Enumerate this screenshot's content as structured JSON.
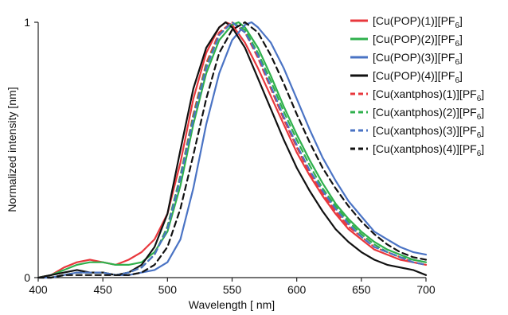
{
  "chart_data": {
    "type": "line",
    "xlabel": "Wavelength [ nm]",
    "ylabel": "Normalized intensity [nm]",
    "xlim": [
      400,
      700
    ],
    "ylim": [
      0,
      1
    ],
    "xticks": [
      400,
      450,
      500,
      550,
      600,
      650,
      700
    ],
    "yticks": [
      0,
      1
    ],
    "grid": false,
    "legend": "top-right",
    "series": [
      {
        "name": "[Cu(POP)(1)][PF6]",
        "label_main": "[Cu(POP)(1)][PF",
        "label_sub": "6",
        "label_end": "]",
        "color": "#e8383d",
        "style": "solid",
        "x": [
          400,
          410,
          420,
          430,
          440,
          450,
          460,
          470,
          480,
          490,
          500,
          510,
          520,
          530,
          540,
          545,
          550,
          560,
          570,
          580,
          590,
          600,
          610,
          620,
          630,
          640,
          650,
          660,
          670,
          680,
          690,
          700
        ],
        "y": [
          0,
          0.01,
          0.04,
          0.06,
          0.07,
          0.06,
          0.05,
          0.07,
          0.1,
          0.15,
          0.25,
          0.45,
          0.7,
          0.88,
          0.98,
          1.0,
          0.99,
          0.92,
          0.82,
          0.71,
          0.6,
          0.49,
          0.4,
          0.32,
          0.25,
          0.19,
          0.15,
          0.11,
          0.09,
          0.07,
          0.06,
          0.05
        ]
      },
      {
        "name": "[Cu(POP)(2)][PF6]",
        "label_main": "[Cu(POP)(2)][PF",
        "label_sub": "6",
        "label_end": "]",
        "color": "#2fb04c",
        "style": "solid",
        "x": [
          400,
          410,
          420,
          430,
          440,
          450,
          460,
          470,
          480,
          490,
          500,
          510,
          520,
          530,
          540,
          550,
          555,
          560,
          570,
          580,
          590,
          600,
          610,
          620,
          630,
          640,
          650,
          660,
          670,
          680,
          690,
          700
        ],
        "y": [
          0,
          0.01,
          0.03,
          0.05,
          0.06,
          0.06,
          0.05,
          0.05,
          0.06,
          0.1,
          0.18,
          0.36,
          0.6,
          0.8,
          0.93,
          0.99,
          1.0,
          0.98,
          0.9,
          0.79,
          0.67,
          0.56,
          0.46,
          0.37,
          0.29,
          0.23,
          0.18,
          0.14,
          0.11,
          0.09,
          0.07,
          0.06
        ]
      },
      {
        "name": "[Cu(POP)(3)][PF6]",
        "label_main": "[Cu(POP)(3)][PF",
        "label_sub": "6",
        "label_end": "]",
        "color": "#4a73c4",
        "style": "solid",
        "x": [
          400,
          410,
          420,
          430,
          440,
          450,
          460,
          470,
          480,
          490,
          500,
          510,
          520,
          530,
          540,
          550,
          560,
          565,
          570,
          580,
          590,
          600,
          610,
          620,
          630,
          640,
          650,
          660,
          670,
          680,
          690,
          700
        ],
        "y": [
          0,
          0,
          0.01,
          0.02,
          0.02,
          0.02,
          0.01,
          0.01,
          0.02,
          0.03,
          0.06,
          0.15,
          0.35,
          0.6,
          0.8,
          0.93,
          0.99,
          1.0,
          0.98,
          0.92,
          0.82,
          0.7,
          0.58,
          0.47,
          0.38,
          0.3,
          0.24,
          0.18,
          0.15,
          0.12,
          0.1,
          0.09
        ]
      },
      {
        "name": "[Cu(POP)(4)][PF6]",
        "label_main": "[Cu(POP)(4)][PF",
        "label_sub": "6",
        "label_end": "]",
        "color": "#111111",
        "style": "solid",
        "x": [
          400,
          410,
          420,
          430,
          440,
          450,
          460,
          470,
          480,
          490,
          500,
          510,
          520,
          530,
          540,
          545,
          550,
          560,
          570,
          580,
          590,
          600,
          610,
          620,
          630,
          640,
          650,
          660,
          670,
          680,
          690,
          700
        ],
        "y": [
          0,
          0.01,
          0.02,
          0.03,
          0.02,
          0.02,
          0.01,
          0.02,
          0.05,
          0.12,
          0.25,
          0.5,
          0.74,
          0.9,
          0.98,
          1.0,
          0.98,
          0.9,
          0.78,
          0.66,
          0.54,
          0.43,
          0.34,
          0.26,
          0.19,
          0.14,
          0.1,
          0.07,
          0.05,
          0.04,
          0.03,
          0.01
        ]
      },
      {
        "name": "[Cu(xantphos)(1)][PF6]",
        "label_main": "[Cu(xantphos)(1)][PF",
        "label_sub": "6",
        "label_end": "]",
        "color": "#e8383d",
        "style": "dashed",
        "x": [
          400,
          410,
          420,
          430,
          440,
          450,
          460,
          470,
          480,
          490,
          500,
          510,
          520,
          530,
          540,
          550,
          560,
          570,
          580,
          590,
          600,
          610,
          620,
          630,
          640,
          650,
          660,
          670,
          680,
          690,
          700
        ],
        "y": [
          0,
          0,
          0.01,
          0.02,
          0.02,
          0.02,
          0.01,
          0.02,
          0.04,
          0.09,
          0.2,
          0.4,
          0.64,
          0.84,
          0.96,
          1.0,
          0.96,
          0.86,
          0.74,
          0.62,
          0.51,
          0.41,
          0.33,
          0.26,
          0.2,
          0.16,
          0.12,
          0.1,
          0.08,
          0.06,
          0.05
        ]
      },
      {
        "name": "[Cu(xantphos)(2)][PF6]",
        "label_main": "[Cu(xantphos)(2)][PF",
        "label_sub": "6",
        "label_end": "]",
        "color": "#2fb04c",
        "style": "dashed",
        "x": [
          400,
          410,
          420,
          430,
          440,
          450,
          460,
          470,
          480,
          490,
          500,
          510,
          520,
          530,
          540,
          550,
          560,
          570,
          580,
          590,
          600,
          610,
          620,
          630,
          640,
          650,
          660,
          670,
          680,
          690,
          700
        ],
        "y": [
          0,
          0,
          0.01,
          0.02,
          0.02,
          0.02,
          0.01,
          0.02,
          0.04,
          0.09,
          0.2,
          0.4,
          0.63,
          0.83,
          0.95,
          1.0,
          0.97,
          0.88,
          0.77,
          0.65,
          0.54,
          0.44,
          0.35,
          0.28,
          0.22,
          0.17,
          0.13,
          0.1,
          0.08,
          0.07,
          0.06
        ]
      },
      {
        "name": "[Cu(xantphos)(3)][PF6]",
        "label_main": "[Cu(xantphos)(3)][PF",
        "label_sub": "6",
        "label_end": "]",
        "color": "#4a73c4",
        "style": "dashed",
        "x": [
          400,
          410,
          420,
          430,
          440,
          450,
          460,
          470,
          480,
          490,
          500,
          510,
          520,
          530,
          540,
          550,
          560,
          570,
          580,
          590,
          600,
          610,
          620,
          630,
          640,
          650,
          660,
          670,
          680,
          690,
          700
        ],
        "y": [
          0,
          0,
          0.01,
          0.02,
          0.02,
          0.02,
          0.01,
          0.02,
          0.04,
          0.09,
          0.19,
          0.39,
          0.62,
          0.82,
          0.95,
          1.0,
          0.96,
          0.87,
          0.75,
          0.63,
          0.52,
          0.42,
          0.34,
          0.27,
          0.21,
          0.16,
          0.12,
          0.1,
          0.08,
          0.06,
          0.05
        ]
      },
      {
        "name": "[Cu(xantphos)(4)][PF6]",
        "label_main": "[Cu(xantphos)(4)][PF",
        "label_sub": "6",
        "label_end": "]",
        "color": "#111111",
        "style": "dashed",
        "x": [
          400,
          410,
          420,
          430,
          440,
          450,
          460,
          470,
          480,
          490,
          500,
          510,
          520,
          530,
          540,
          550,
          560,
          570,
          580,
          590,
          600,
          610,
          620,
          630,
          640,
          650,
          660,
          670,
          680,
          690,
          700
        ],
        "y": [
          0,
          0,
          0.01,
          0.01,
          0.01,
          0.01,
          0.01,
          0.01,
          0.02,
          0.05,
          0.12,
          0.27,
          0.48,
          0.7,
          0.88,
          0.97,
          1.0,
          0.96,
          0.87,
          0.76,
          0.64,
          0.53,
          0.43,
          0.35,
          0.28,
          0.22,
          0.17,
          0.13,
          0.1,
          0.08,
          0.07
        ]
      }
    ]
  }
}
